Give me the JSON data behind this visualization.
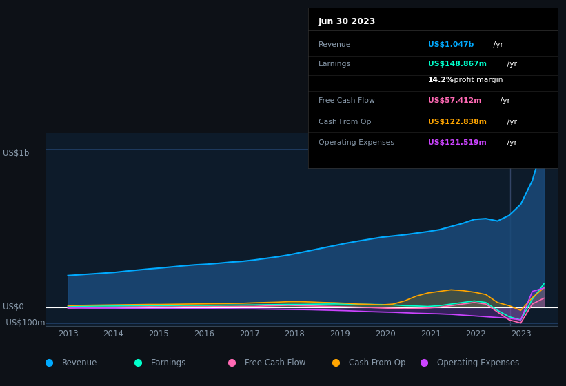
{
  "bg_color": "#0d1117",
  "plot_bg_color": "#0d1b2a",
  "grid_color": "#1e3a5f",
  "text_color": "#8899aa",
  "ylabel_text": "US$1b",
  "ylabel_bottom": "US$0",
  "ylabel_neg": "-US$100m",
  "x_labels": [
    "2013",
    "2014",
    "2015",
    "2016",
    "2017",
    "2018",
    "2019",
    "2020",
    "2021",
    "2022",
    "2023"
  ],
  "revenue_color": "#00aaff",
  "earnings_color": "#00ffcc",
  "fcf_color": "#ff69b4",
  "cashop_color": "#ffa500",
  "opex_color": "#cc44ff",
  "revenue_fill": "#1a4a7a",
  "legend_items": [
    "Revenue",
    "Earnings",
    "Free Cash Flow",
    "Cash From Op",
    "Operating Expenses"
  ],
  "legend_colors": [
    "#00aaff",
    "#00ffcc",
    "#ff69b4",
    "#ffa500",
    "#cc44ff"
  ],
  "tooltip_title": "Jun 30 2023",
  "tooltip_rows": [
    {
      "label": "Revenue",
      "value": "US$1.047b",
      "color": "#00aaff"
    },
    {
      "label": "Earnings",
      "value": "US$148.867m",
      "color": "#00ffcc"
    },
    {
      "label": "",
      "value": "14.2% profit margin",
      "color": "#ffffff"
    },
    {
      "label": "Free Cash Flow",
      "value": "US$57.412m",
      "color": "#ff69b4"
    },
    {
      "label": "Cash From Op",
      "value": "US$122.838m",
      "color": "#ffa500"
    },
    {
      "label": "Operating Expenses",
      "value": "US$121.519m",
      "color": "#cc44ff"
    }
  ],
  "ylim": [
    -120000000,
    1100000000
  ],
  "xlim": [
    2012.5,
    2023.8
  ]
}
